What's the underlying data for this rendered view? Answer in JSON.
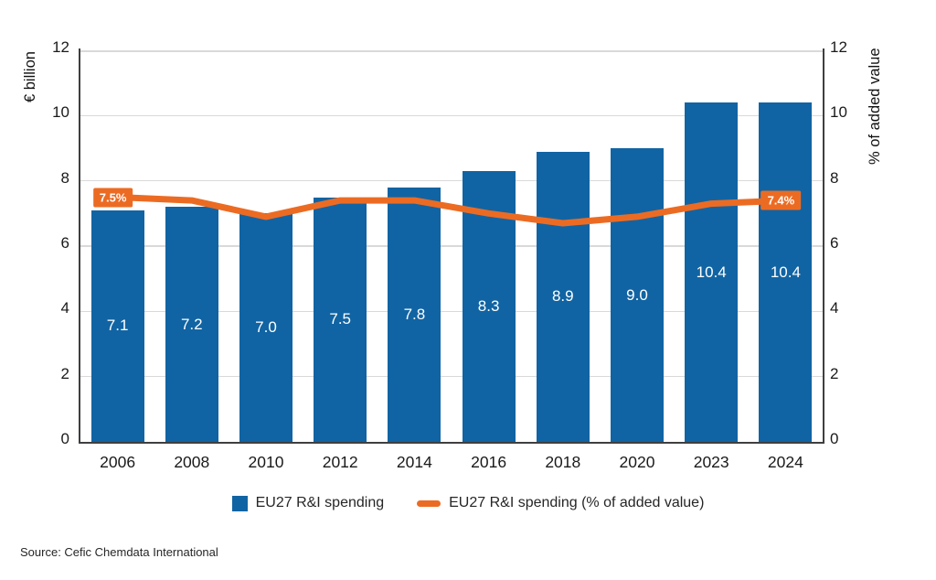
{
  "chart_data": {
    "type": "bar",
    "subtype": "bar+line dual axis",
    "categories": [
      "2006",
      "2008",
      "2010",
      "2012",
      "2014",
      "2016",
      "2018",
      "2020",
      "2023",
      "2024"
    ],
    "series": [
      {
        "name": "EU27 R&I spending",
        "render": "bar",
        "axis": "left",
        "unit": "€ billion",
        "values": [
          7.1,
          7.2,
          7.0,
          7.5,
          7.8,
          8.3,
          8.9,
          9.0,
          10.4,
          10.4
        ],
        "color": "#1164A3",
        "value_label_color": "#ffffff"
      },
      {
        "name": "EU27 R&I spending (% of added value)",
        "render": "line",
        "axis": "right",
        "unit": "% of added value",
        "values": [
          7.5,
          7.4,
          6.9,
          7.4,
          7.4,
          7.0,
          6.7,
          6.9,
          7.3,
          7.4
        ],
        "color": "#EC6B23",
        "point_labels": {
          "first": "7.5%",
          "last": "7.4%"
        }
      }
    ],
    "left_axis": {
      "label": "€ billion",
      "min": 0,
      "max": 12,
      "ticks": [
        0,
        2,
        4,
        6,
        8,
        10,
        12
      ]
    },
    "right_axis": {
      "label": "% of added value",
      "min": 0,
      "max": 12,
      "ticks": [
        0,
        2,
        4,
        6,
        8,
        10,
        12
      ]
    },
    "grid": true,
    "legend_position": "bottom",
    "title": ""
  },
  "legend": {
    "items": [
      {
        "label": "EU27 R&I spending",
        "marker": "square",
        "color": "#1164A3"
      },
      {
        "label": "EU27 R&I spending (% of added value)",
        "marker": "dash",
        "color": "#EC6B23"
      }
    ]
  },
  "source": {
    "text": "Source: Cefic Chemdata International"
  }
}
